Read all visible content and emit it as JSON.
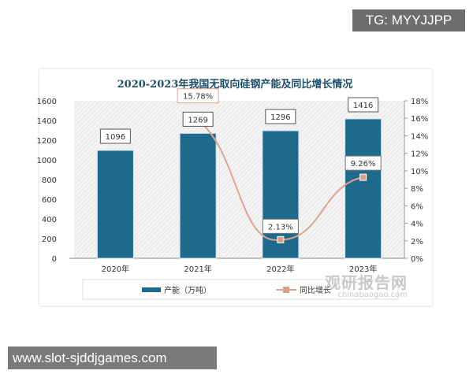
{
  "watermark_top": "TG: MYYJJPP",
  "watermark_bottom": "www.slot-sjddjgames.com",
  "logo": {
    "name": "观研报告网",
    "domain": "chinabaogao.com"
  },
  "chart_data": {
    "type": "bar+line",
    "title": "2020-2023年我国无取向硅钢产能及同比增长情况",
    "categories": [
      "2020年",
      "2021年",
      "2022年",
      "2023年"
    ],
    "series": [
      {
        "name": "产能（万吨）",
        "type": "bar",
        "axis": "left",
        "values": [
          1096,
          1269,
          1296,
          1416
        ],
        "labels": [
          "1096",
          "1269",
          "1296",
          "1416"
        ],
        "color": "#1d6a8c"
      },
      {
        "name": "同比增长",
        "type": "line",
        "axis": "right",
        "values": [
          null,
          15.78,
          2.13,
          9.26
        ],
        "labels": [
          "",
          "15.78%",
          "2.13%",
          "9.26%"
        ],
        "color": "#e0a48c"
      }
    ],
    "left_axis": {
      "range": [
        0,
        1600
      ],
      "ticks": [
        "0",
        "200",
        "400",
        "600",
        "800",
        "1000",
        "1200",
        "1400",
        "1600"
      ]
    },
    "right_axis": {
      "range": [
        0,
        18
      ],
      "ticks": [
        "0%",
        "2%",
        "4%",
        "6%",
        "8%",
        "10%",
        "12%",
        "14%",
        "16%",
        "18%"
      ]
    },
    "legend_placement": "bottom",
    "grid": false
  }
}
